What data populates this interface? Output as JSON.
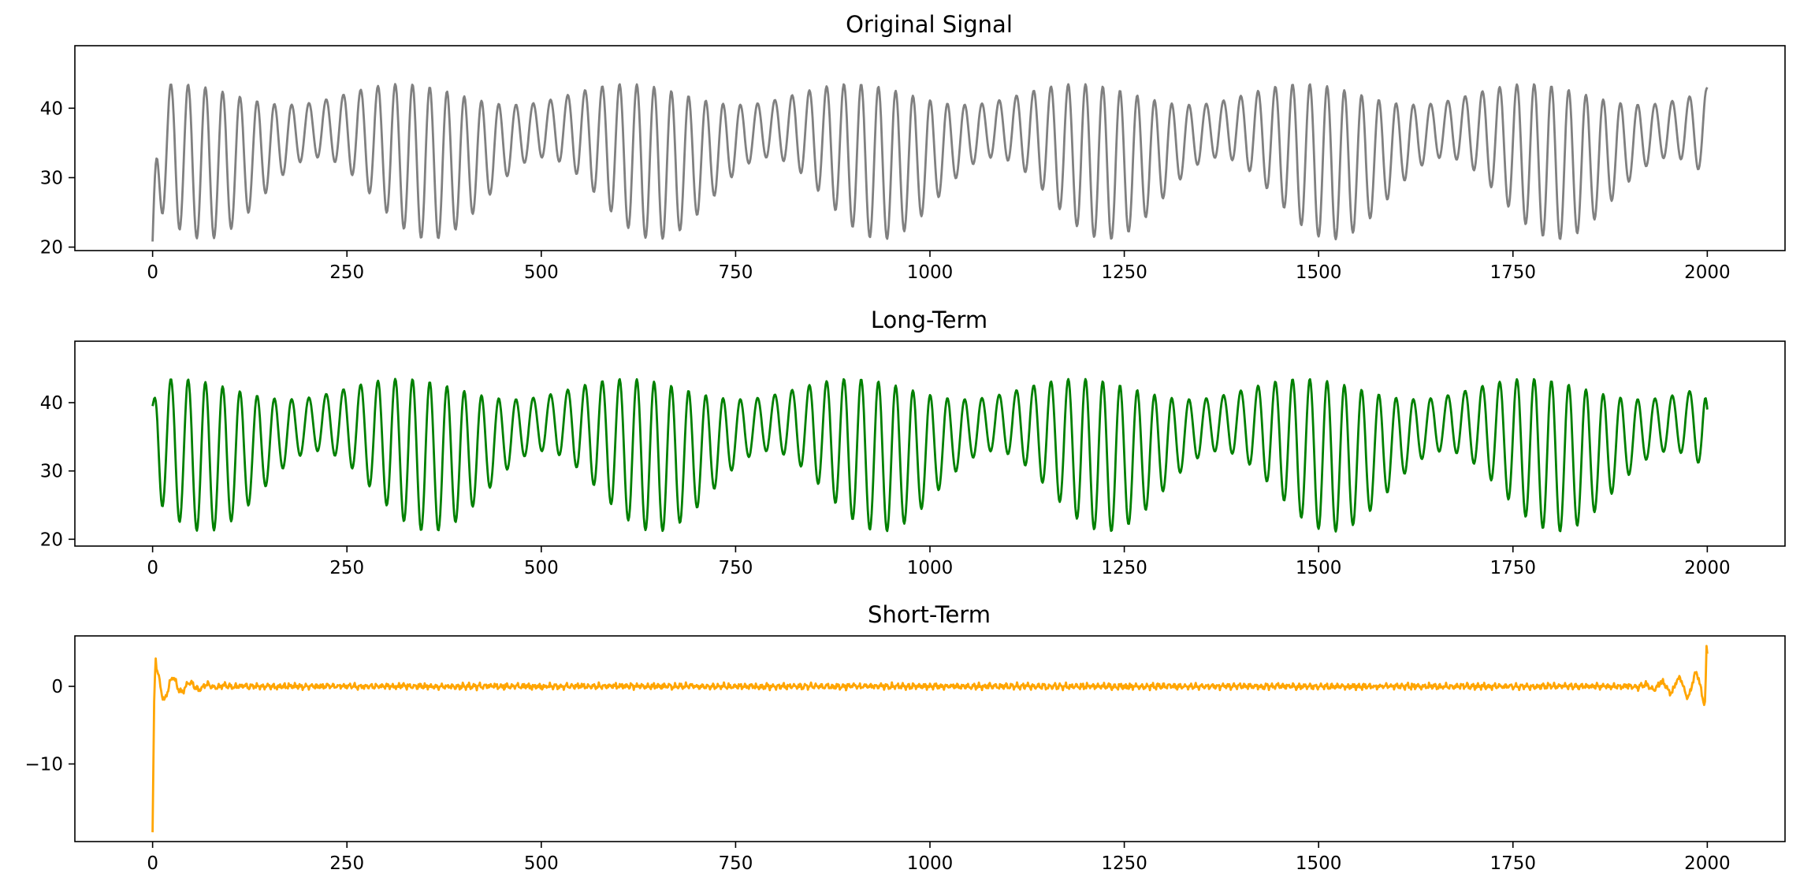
{
  "chart_data": [
    {
      "type": "line",
      "title": "Original Signal",
      "xlabel": "",
      "ylabel": "",
      "xlim": [
        -100,
        2100
      ],
      "ylim": [
        19.5,
        49.0
      ],
      "xticks": [
        0,
        250,
        500,
        750,
        1000,
        1250,
        1500,
        1750,
        2000
      ],
      "xtick_labels": [
        "0",
        "250",
        "500",
        "750",
        "1000",
        "1250",
        "1500",
        "1750",
        "2000"
      ],
      "yticks": [
        20,
        30,
        40
      ],
      "ytick_labels": [
        "20",
        "30",
        "40"
      ],
      "grid": false,
      "series": [
        {
          "color": "#808080",
          "x_range": [
            0,
            2000
          ],
          "baseline": 34.5,
          "slow_amplitude": 2.5,
          "slow_period": 290,
          "fast_period": 22.2,
          "fast_amplitude_mean": 7.5,
          "fast_amplitude_variation": 3.5,
          "envelope_period": 290,
          "start_value": 20.8,
          "end_value": 43.0
        }
      ]
    },
    {
      "type": "line",
      "title": "Long-Term",
      "xlabel": "",
      "ylabel": "",
      "xlim": [
        -100,
        2100
      ],
      "ylim": [
        19.0,
        49.0
      ],
      "xticks": [
        0,
        250,
        500,
        750,
        1000,
        1250,
        1500,
        1750,
        2000
      ],
      "xtick_labels": [
        "0",
        "250",
        "500",
        "750",
        "1000",
        "1250",
        "1500",
        "1750",
        "2000"
      ],
      "yticks": [
        20,
        30,
        40
      ],
      "ytick_labels": [
        "20",
        "30",
        "40"
      ],
      "grid": false,
      "series": [
        {
          "color": "#008000",
          "x_range": [
            0,
            2000
          ],
          "baseline": 34.5,
          "slow_amplitude": 2.5,
          "slow_period": 290,
          "fast_period": 22.2,
          "fast_amplitude_mean": 7.5,
          "fast_amplitude_variation": 3.5,
          "envelope_period": 290,
          "start_value": 39.5,
          "end_value": 39.0
        }
      ]
    },
    {
      "type": "line",
      "title": "Short-Term",
      "xlabel": "",
      "ylabel": "",
      "xlim": [
        -100,
        2100
      ],
      "ylim": [
        -20.0,
        6.5
      ],
      "xticks": [
        0,
        250,
        500,
        750,
        1000,
        1250,
        1500,
        1750,
        2000
      ],
      "xtick_labels": [
        "0",
        "250",
        "500",
        "750",
        "1000",
        "1250",
        "1500",
        "1750",
        "2000"
      ],
      "yticks": [
        -10,
        0
      ],
      "ytick_labels": [
        "−10",
        "0"
      ],
      "grid": false,
      "series": [
        {
          "color": "#ffa500",
          "x_range": [
            0,
            2000
          ],
          "start_value": -18.8,
          "start_peak": 3.6,
          "end_value": 4.2,
          "end_peak": 5.2,
          "end_trough": -2.4,
          "noise_amplitude": 0.35
        }
      ]
    }
  ]
}
